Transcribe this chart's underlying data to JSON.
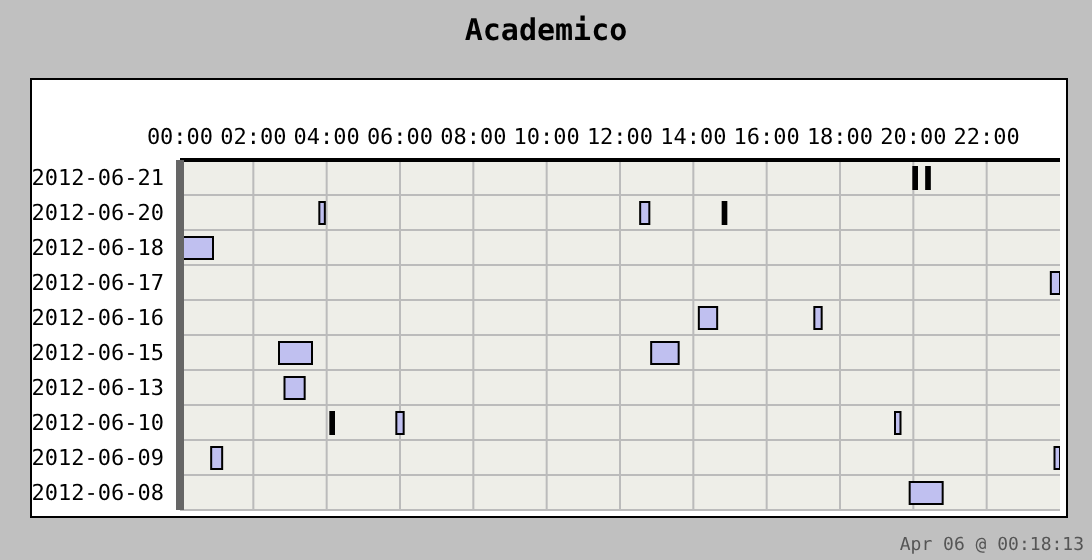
{
  "chart_data": {
    "type": "bar",
    "orientation": "horizontal",
    "title": "Academico",
    "categories": [
      "2012-06-21",
      "2012-06-20",
      "2012-06-18",
      "2012-06-17",
      "2012-06-16",
      "2012-06-15",
      "2012-06-13",
      "2012-06-10",
      "2012-06-09",
      "2012-06-08"
    ],
    "series": [
      {
        "color": "#c0c0f0",
        "base": [
          null,
          3.8,
          0,
          23.75,
          14.15,
          2.7,
          2.85,
          5.9,
          0.85,
          19.9
        ],
        "values": [
          null,
          0.15,
          0.9,
          0.25,
          0.5,
          0.9,
          0.55,
          0.2,
          0.3,
          0.9
        ]
      },
      {
        "color": "#c0c0f0",
        "base": [
          null,
          12.55,
          null,
          null,
          17.3,
          12.85,
          null,
          19.5,
          23.85,
          null
        ],
        "values": [
          null,
          0.25,
          null,
          null,
          0.2,
          0.75,
          null,
          0.15,
          0.15,
          null
        ]
      },
      {
        "color": "#000000",
        "base": [
          20.0,
          14.8,
          null,
          null,
          null,
          null,
          null,
          4.1,
          null,
          null
        ],
        "values": [
          0.1,
          0.1,
          null,
          null,
          null,
          null,
          null,
          0.1,
          null,
          null
        ]
      },
      {
        "color": "#000000",
        "base": [
          20.35,
          null,
          null,
          null,
          null,
          null,
          null,
          null,
          null,
          null
        ],
        "values": [
          0.1,
          null,
          null,
          null,
          null,
          null,
          null,
          null,
          null,
          null
        ]
      }
    ],
    "xlim": [
      0,
      24
    ],
    "xticks": [
      {
        "value": 0,
        "label": "00:00"
      },
      {
        "value": 2,
        "label": "02:00"
      },
      {
        "value": 4,
        "label": "04:00"
      },
      {
        "value": 6,
        "label": "06:00"
      },
      {
        "value": 8,
        "label": "08:00"
      },
      {
        "value": 10,
        "label": "10:00"
      },
      {
        "value": 12,
        "label": "12:00"
      },
      {
        "value": 14,
        "label": "14:00"
      },
      {
        "value": 16,
        "label": "16:00"
      },
      {
        "value": 18,
        "label": "18:00"
      },
      {
        "value": 20,
        "label": "20:00"
      },
      {
        "value": 22,
        "label": "22:00"
      }
    ],
    "grid": true,
    "annotations": [
      "Apr 06 @ 00:18:13"
    ]
  }
}
